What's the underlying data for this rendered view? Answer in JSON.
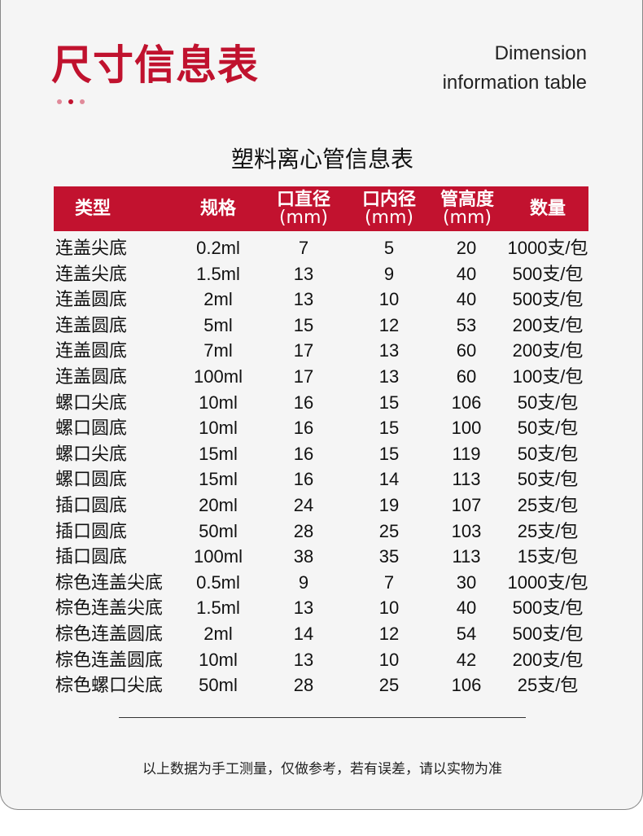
{
  "header": {
    "title": "尺寸信息表",
    "subtitle_en_line1": "Dimension",
    "subtitle_en_line2": "information table",
    "dot_colors": [
      "#e08a9a",
      "#c2122f",
      "#e08a9a"
    ]
  },
  "table": {
    "title": "塑料离心管信息表",
    "header_color": "#c2122f",
    "columns": [
      {
        "label": "类型",
        "unit": ""
      },
      {
        "label": "规格",
        "unit": ""
      },
      {
        "label": "口直径",
        "unit": "(mm)"
      },
      {
        "label": "口内径",
        "unit": "(mm)"
      },
      {
        "label": "管高度",
        "unit": "(mm)"
      },
      {
        "label": "数量",
        "unit": ""
      }
    ],
    "rows": [
      [
        "连盖尖底",
        "0.2ml",
        "7",
        "5",
        "20",
        "1000支/包"
      ],
      [
        "连盖尖底",
        "1.5ml",
        "13",
        "9",
        "40",
        "500支/包"
      ],
      [
        "连盖圆底",
        "2ml",
        "13",
        "10",
        "40",
        "500支/包"
      ],
      [
        "连盖圆底",
        "5ml",
        "15",
        "12",
        "53",
        "200支/包"
      ],
      [
        "连盖圆底",
        "7ml",
        "17",
        "13",
        "60",
        "200支/包"
      ],
      [
        "连盖圆底",
        "100ml",
        "17",
        "13",
        "60",
        "100支/包"
      ],
      [
        "螺口尖底",
        "10ml",
        "16",
        "15",
        "106",
        "50支/包"
      ],
      [
        "螺口圆底",
        "10ml",
        "16",
        "15",
        "100",
        "50支/包"
      ],
      [
        "螺口尖底",
        "15ml",
        "16",
        "15",
        "119",
        "50支/包"
      ],
      [
        "螺口圆底",
        "15ml",
        "16",
        "14",
        "113",
        "50支/包"
      ],
      [
        "插口圆底",
        "20ml",
        "24",
        "19",
        "107",
        "25支/包"
      ],
      [
        "插口圆底",
        "50ml",
        "28",
        "25",
        "103",
        "25支/包"
      ],
      [
        "插口圆底",
        "100ml",
        "38",
        "35",
        "113",
        "15支/包"
      ],
      [
        "棕色连盖尖底",
        "0.5ml",
        "9",
        "7",
        "30",
        "1000支/包"
      ],
      [
        "棕色连盖尖底",
        "1.5ml",
        "13",
        "10",
        "40",
        "500支/包"
      ],
      [
        "棕色连盖圆底",
        "2ml",
        "14",
        "12",
        "54",
        "500支/包"
      ],
      [
        "棕色连盖圆底",
        "10ml",
        "13",
        "10",
        "42",
        "200支/包"
      ],
      [
        "棕色螺口尖底",
        "50ml",
        "28",
        "25",
        "106",
        "25支/包"
      ]
    ]
  },
  "footer": {
    "note": "以上数据为手工测量，仅做参考，若有误差，请以实物为准"
  }
}
